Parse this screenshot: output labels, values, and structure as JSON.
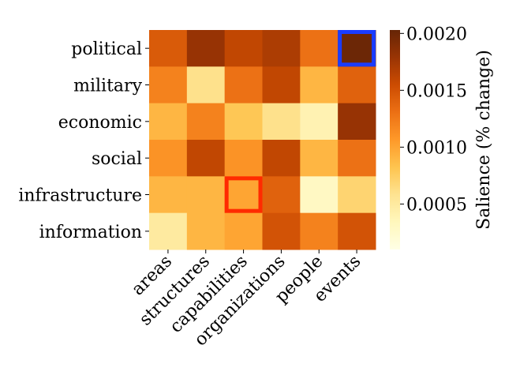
{
  "chart_data": {
    "type": "heatmap",
    "rows": [
      "political",
      "military",
      "economic",
      "social",
      "infrastructure",
      "information"
    ],
    "columns": [
      "areas",
      "structures",
      "capabilities",
      "organizations",
      "people",
      "events"
    ],
    "values": [
      [
        0.00145,
        0.0018,
        0.0016,
        0.0017,
        0.0013,
        0.002
      ],
      [
        0.0012,
        0.0006,
        0.0013,
        0.0016,
        0.0009,
        0.0014
      ],
      [
        0.0009,
        0.0012,
        0.0008,
        0.0006,
        0.0004,
        0.0018
      ],
      [
        0.0011,
        0.0016,
        0.0011,
        0.0016,
        0.0009,
        0.0013
      ],
      [
        0.0009,
        0.0009,
        0.001,
        0.0014,
        0.0003,
        0.0007
      ],
      [
        0.0005,
        0.0009,
        0.001,
        0.0015,
        0.0012,
        0.0015
      ]
    ],
    "colormap": "YlOrBr",
    "vmin": 0.0001,
    "vmax": 0.00203,
    "colorbar": {
      "label": "Salience (% change)",
      "ticks": [
        0.0005,
        0.001,
        0.0015,
        0.002
      ],
      "tick_labels": [
        "0.0005",
        "0.0010",
        "0.0015",
        "0.0020"
      ]
    },
    "highlights": [
      {
        "row": "political",
        "column": "events",
        "color": "#1a3cff"
      },
      {
        "row": "infrastructure",
        "column": "capabilities",
        "color": "#ff2a00"
      }
    ]
  }
}
